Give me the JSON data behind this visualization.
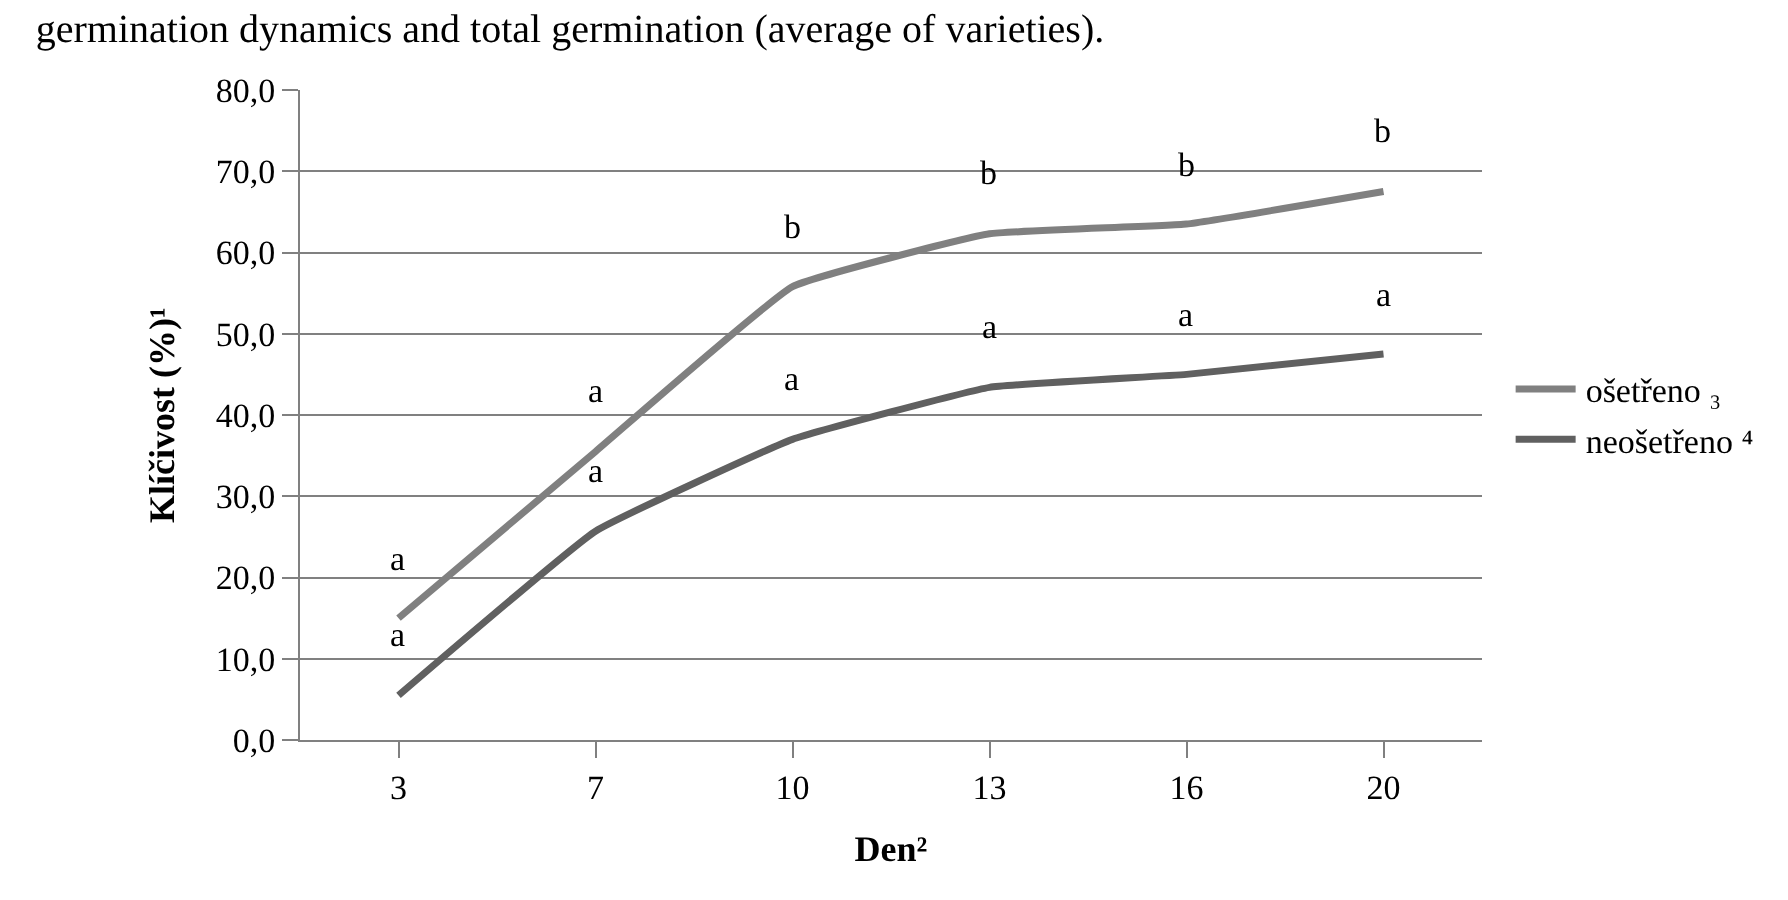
{
  "chart_data": {
    "type": "line",
    "title": "germination dynamics and total germination (average of varieties).",
    "xlabel": "Den²",
    "ylabel": "Klíčivost (%)¹",
    "categories": [
      "3",
      "7",
      "10",
      "13",
      "16",
      "20"
    ],
    "series": [
      {
        "name": "ošetřeno ₃",
        "color": "#808080",
        "values": [
          15.0,
          35.5,
          55.8,
          62.3,
          63.5,
          67.5
        ],
        "value_labels": [
          "a",
          "a",
          "b",
          "b",
          "b",
          "b"
        ]
      },
      {
        "name": "neošetřeno ⁴",
        "color": "#606060",
        "values": [
          5.5,
          25.7,
          37.0,
          43.4,
          45.0,
          47.5
        ],
        "value_labels": [
          "a",
          "a",
          "a",
          "a",
          "a",
          "a"
        ]
      }
    ],
    "ylim": [
      0,
      80
    ],
    "yticks": [
      {
        "value": 0,
        "label": "0,0"
      },
      {
        "value": 10,
        "label": "10,0"
      },
      {
        "value": 20,
        "label": "20,0"
      },
      {
        "value": 30,
        "label": "30,0"
      },
      {
        "value": 40,
        "label": "40,0"
      },
      {
        "value": 50,
        "label": "50,0"
      },
      {
        "value": 60,
        "label": "60,0"
      },
      {
        "value": 70,
        "label": "70,0"
      },
      {
        "value": 80,
        "label": "80,0"
      }
    ],
    "grid": "y",
    "legend": "right",
    "marker": "none",
    "line_style": "solid"
  }
}
